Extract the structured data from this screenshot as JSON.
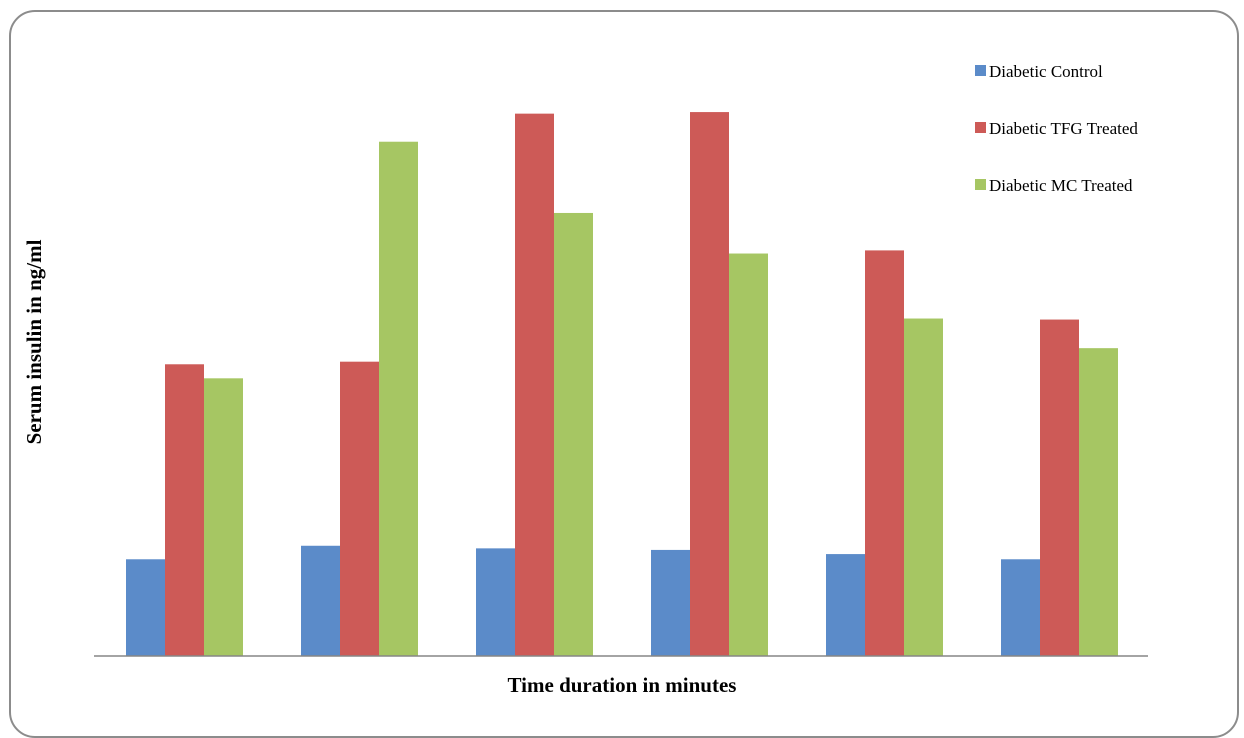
{
  "chart_data": {
    "type": "bar",
    "title": "",
    "xlabel": "Time duration in minutes",
    "ylabel": "Serum insulin  in ng/ml",
    "categories": [
      "",
      "",
      "",
      "",
      "",
      ""
    ],
    "ylim": [
      0,
      100
    ],
    "grid": false,
    "legend_position": "top-right",
    "series": [
      {
        "name": "Diabetic Control",
        "color": "#5b8bc9",
        "values": [
          18.6,
          21.2,
          20.7,
          20.4,
          19.6,
          18.6
        ]
      },
      {
        "name": "Diabetic TFG Treated",
        "color": "#cd5a57",
        "values": [
          56.1,
          56.6,
          104.3,
          104.6,
          78.0,
          64.7
        ]
      },
      {
        "name": "Diabetic MC Treated",
        "color": "#a6c663",
        "values": [
          53.4,
          98.9,
          85.2,
          77.4,
          64.9,
          59.2
        ]
      }
    ]
  }
}
